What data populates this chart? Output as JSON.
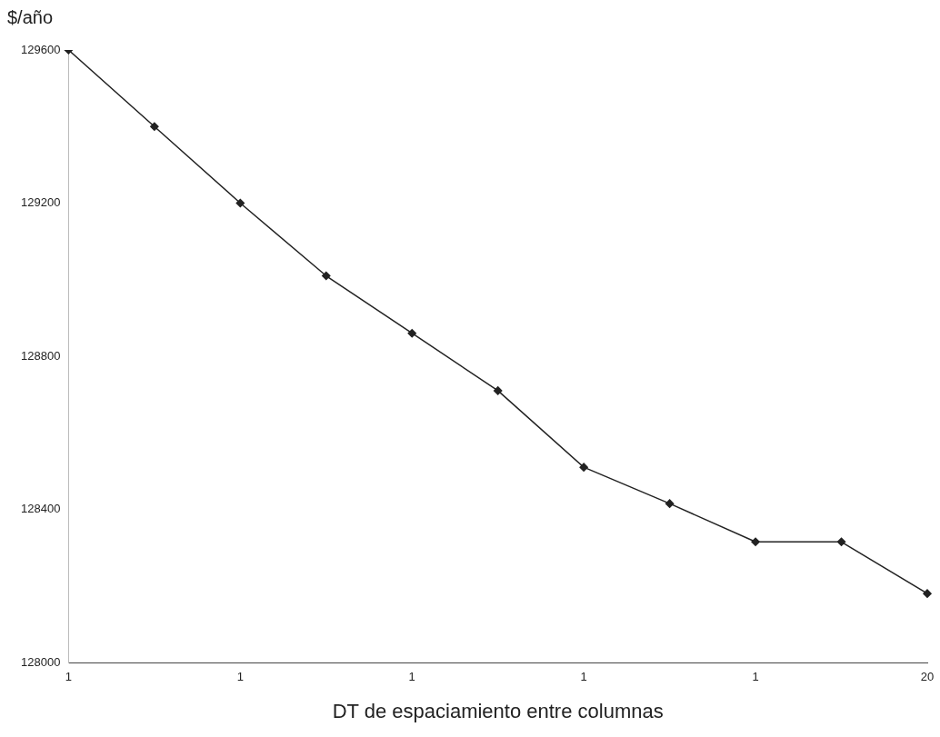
{
  "chart_data": {
    "type": "line",
    "ylabel": "$/año",
    "xlabel": "DT de espaciamiento entre columnas",
    "categories": [
      "1",
      null,
      "1",
      null,
      "1",
      null,
      "1",
      null,
      "1",
      null,
      "20"
    ],
    "series": [
      {
        "color": "#222222",
        "values": [
          129600,
          129400,
          129200,
          129010,
          128860,
          128710,
          128510,
          128415,
          128315,
          128315,
          128180
        ]
      }
    ],
    "ylim": [
      128000,
      129600
    ],
    "yticks": [
      128000,
      128400,
      128800,
      129200,
      129600
    ],
    "grid": false,
    "legend": false,
    "marker": "diamond",
    "line_style": "solid"
  }
}
